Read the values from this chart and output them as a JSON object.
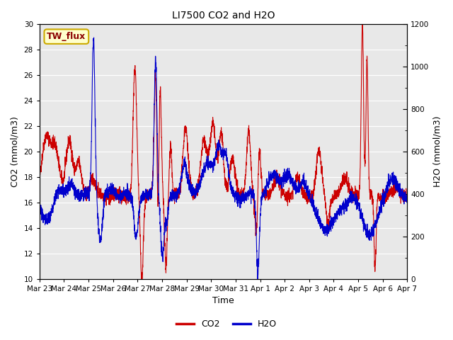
{
  "title": "LI7500 CO2 and H2O",
  "xlabel": "Time",
  "ylabel_left": "CO2 (mmol/m3)",
  "ylabel_right": "H2O (mmol/m3)",
  "ylim_left": [
    10,
    30
  ],
  "ylim_right": [
    0,
    1200
  ],
  "yticks_left": [
    10,
    12,
    14,
    16,
    18,
    20,
    22,
    24,
    26,
    28,
    30
  ],
  "yticks_right": [
    0,
    200,
    400,
    600,
    800,
    1000,
    1200
  ],
  "xtick_labels": [
    "Mar 23",
    "Mar 24",
    "Mar 25",
    "Mar 26",
    "Mar 27",
    "Mar 28",
    "Mar 29",
    "Mar 30",
    "Mar 31",
    "Apr 1",
    "Apr 2",
    "Apr 3",
    "Apr 4",
    "Apr 5",
    "Apr 6",
    "Apr 7"
  ],
  "co2_color": "#cc0000",
  "h2o_color": "#0000cc",
  "plot_bg_color": "#e8e8e8",
  "legend_label_co2": "CO2",
  "legend_label_h2o": "H2O",
  "annotation_text": "TW_flux",
  "annotation_bg": "#ffffcc",
  "annotation_border": "#ccaa00",
  "line_width": 0.8,
  "n_points": 3000
}
